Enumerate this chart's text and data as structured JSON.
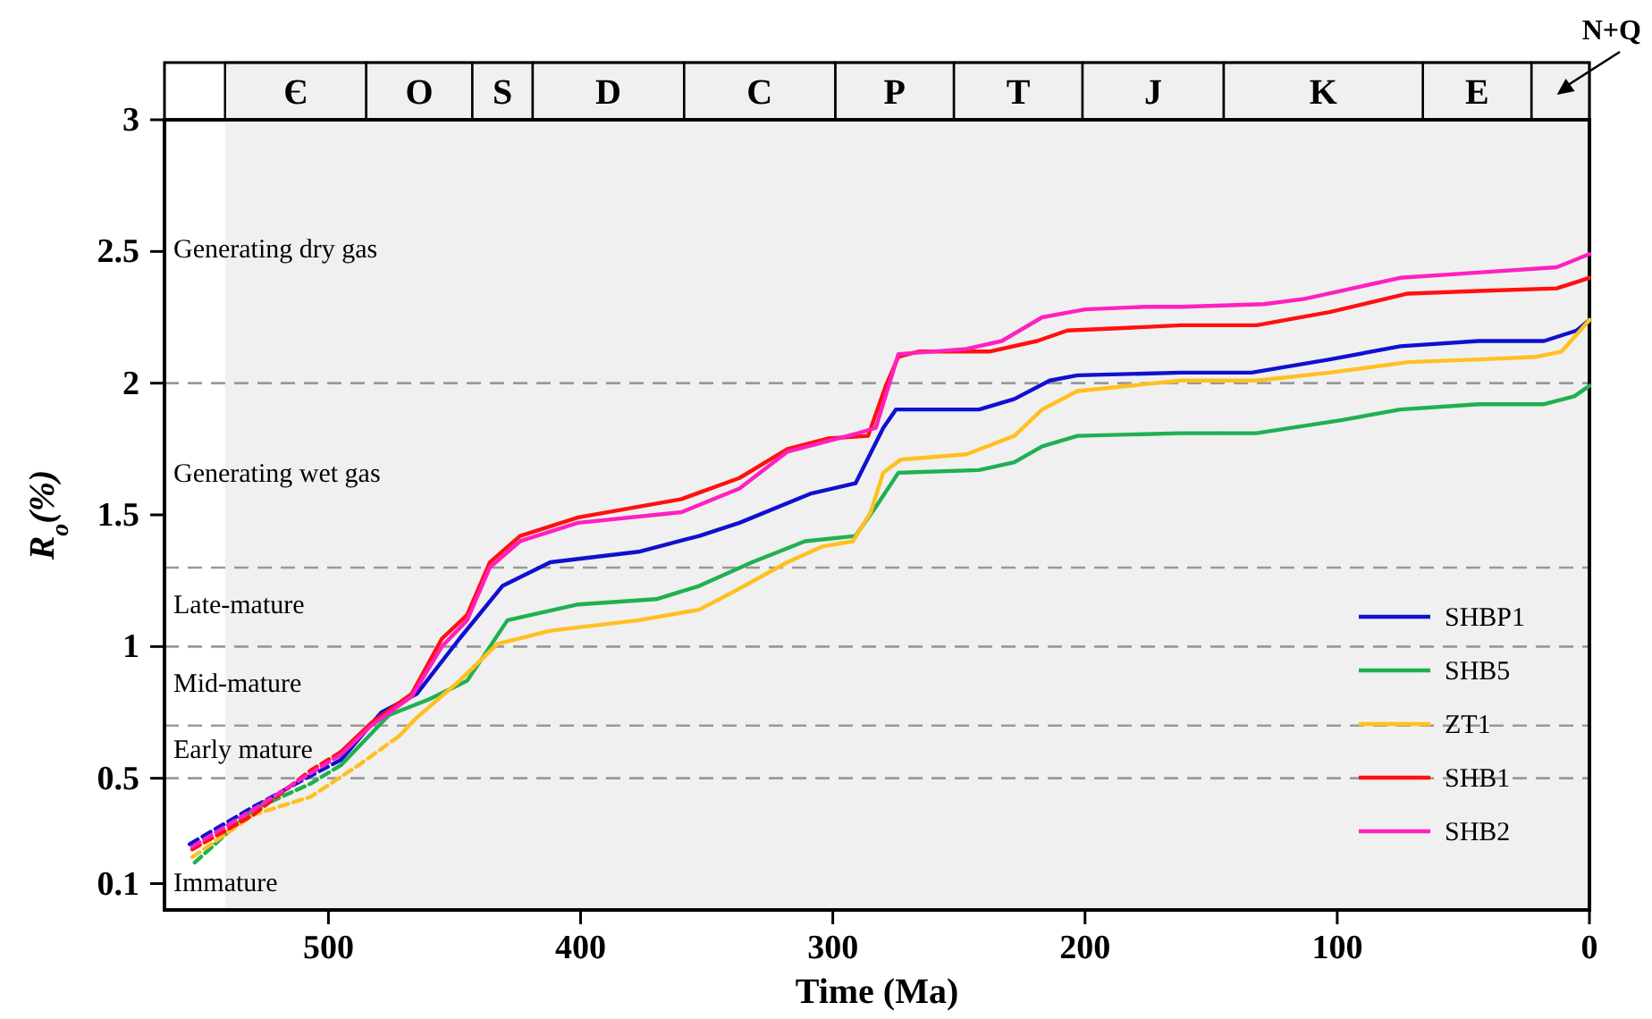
{
  "chart_data": {
    "type": "line",
    "xlabel": "Time (Ma)",
    "ylabel": "R$_{o}$(%)",
    "xlim": [
      565,
      0
    ],
    "xticks": [
      500,
      400,
      300,
      200,
      100,
      0
    ],
    "ylim": [
      0,
      3
    ],
    "yticks": [
      0.1,
      0.5,
      1,
      1.5,
      2,
      2.5,
      3
    ],
    "grid": false,
    "legend": "bottom right",
    "marker": "none",
    "series": [
      {
        "color": "#1010d0",
        "line_style": "dashed",
        "x": [
          555,
          530,
          507,
          495
        ],
        "values": [
          0.25,
          0.39,
          0.51,
          0.57
        ]
      },
      {
        "color": "#20b050",
        "line_style": "dashed",
        "x": [
          553,
          530,
          507,
          495
        ],
        "values": [
          0.18,
          0.38,
          0.48,
          0.55
        ]
      },
      {
        "color": "#ffc020",
        "line_style": "dashed",
        "x": [
          554,
          530,
          507,
          488,
          472
        ],
        "values": [
          0.2,
          0.36,
          0.43,
          0.55,
          0.66
        ]
      },
      {
        "color": "#ff1010",
        "line_style": "dashed",
        "x": [
          554,
          530,
          507,
          495
        ],
        "values": [
          0.23,
          0.36,
          0.53,
          0.6
        ]
      },
      {
        "color": "#ff20c0",
        "line_style": "dashed",
        "x": [
          554,
          530,
          507,
          495
        ],
        "values": [
          0.24,
          0.38,
          0.52,
          0.59
        ]
      },
      {
        "name": "SHBP1",
        "color": "#1010d0",
        "line_style": "solid",
        "x": [
          495,
          479,
          465,
          448,
          431,
          412,
          377,
          353,
          337,
          309,
          291,
          280,
          275,
          242,
          228,
          214,
          203,
          162,
          134,
          103,
          75,
          44,
          18,
          5,
          0
        ],
        "values": [
          0.57,
          0.75,
          0.82,
          1.03,
          1.23,
          1.32,
          1.36,
          1.42,
          1.47,
          1.58,
          1.62,
          1.83,
          1.9,
          1.9,
          1.94,
          2.01,
          2.03,
          2.04,
          2.04,
          2.09,
          2.14,
          2.16,
          2.16,
          2.2,
          2.24
        ]
      },
      {
        "name": "SHB5",
        "color": "#20b050",
        "line_style": "solid",
        "x": [
          495,
          486,
          476,
          460,
          445,
          429,
          401,
          370,
          353,
          332,
          311,
          291,
          283,
          274,
          242,
          228,
          217,
          203,
          162,
          132,
          98,
          75,
          44,
          18,
          6,
          0
        ],
        "values": [
          0.55,
          0.64,
          0.74,
          0.8,
          0.87,
          1.1,
          1.16,
          1.18,
          1.23,
          1.32,
          1.4,
          1.42,
          1.53,
          1.66,
          1.67,
          1.7,
          1.76,
          1.8,
          1.81,
          1.81,
          1.86,
          1.9,
          1.92,
          1.92,
          1.95,
          1.99
        ]
      },
      {
        "name": "ZT1",
        "color": "#ffc020",
        "line_style": "solid",
        "x": [
          472,
          465,
          448,
          433,
          412,
          377,
          353,
          339,
          318,
          304,
          292,
          285,
          280,
          273,
          247,
          228,
          217,
          203,
          162,
          132,
          103,
          72,
          44,
          21,
          11,
          0
        ],
        "values": [
          0.66,
          0.73,
          0.87,
          1.01,
          1.06,
          1.1,
          1.14,
          1.21,
          1.32,
          1.38,
          1.4,
          1.51,
          1.66,
          1.71,
          1.73,
          1.8,
          1.9,
          1.97,
          2.01,
          2.01,
          2.04,
          2.08,
          2.09,
          2.1,
          2.12,
          2.24
        ]
      },
      {
        "name": "SHB1",
        "color": "#ff1010",
        "line_style": "solid",
        "x": [
          495,
          483,
          467,
          455,
          445,
          436,
          424,
          401,
          360,
          337,
          318,
          302,
          286,
          279,
          274,
          266,
          238,
          219,
          207,
          183,
          162,
          132,
          103,
          72,
          44,
          13,
          0
        ],
        "values": [
          0.6,
          0.71,
          0.82,
          1.03,
          1.12,
          1.32,
          1.42,
          1.49,
          1.56,
          1.64,
          1.75,
          1.79,
          1.8,
          1.99,
          2.1,
          2.12,
          2.12,
          2.16,
          2.2,
          2.21,
          2.22,
          2.22,
          2.27,
          2.34,
          2.35,
          2.36,
          2.4
        ]
      },
      {
        "name": "SHB2",
        "color": "#ff20c0",
        "line_style": "solid",
        "x": [
          495,
          483,
          467,
          455,
          445,
          436,
          424,
          401,
          360,
          337,
          318,
          290,
          283,
          274,
          247,
          233,
          217,
          200,
          176,
          162,
          129,
          113,
          75,
          44,
          13,
          0
        ],
        "values": [
          0.59,
          0.7,
          0.81,
          1.0,
          1.1,
          1.3,
          1.4,
          1.47,
          1.51,
          1.6,
          1.74,
          1.81,
          1.83,
          2.11,
          2.13,
          2.16,
          2.25,
          2.28,
          2.29,
          2.29,
          2.3,
          2.32,
          2.4,
          2.42,
          2.44,
          2.49
        ]
      }
    ],
    "ref_lines": [
      {
        "axis": "y",
        "value": 0.5,
        "color": "#999999",
        "line_style": "dashed"
      },
      {
        "axis": "y",
        "value": 0.7,
        "color": "#999999",
        "line_style": "dashed"
      },
      {
        "axis": "y",
        "value": 1,
        "color": "#999999",
        "line_style": "dashed"
      },
      {
        "axis": "y",
        "value": 1.3,
        "color": "#999999",
        "line_style": "dashed"
      },
      {
        "axis": "y",
        "value": 2,
        "color": "#999999",
        "line_style": "dashed"
      }
    ],
    "bands": [
      {
        "axis": "x",
        "from": 541,
        "to": 485,
        "label": "Є",
        "color": "#f0f0f0"
      },
      {
        "axis": "x",
        "from": 485,
        "to": 443,
        "label": "O",
        "color": "#f0f0f0"
      },
      {
        "axis": "x",
        "from": 443,
        "to": 419,
        "label": "S",
        "color": "#f0f0f0"
      },
      {
        "axis": "x",
        "from": 419,
        "to": 359,
        "label": "D",
        "color": "#f0f0f0"
      },
      {
        "axis": "x",
        "from": 359,
        "to": 299,
        "label": "C",
        "color": "#f0f0f0"
      },
      {
        "axis": "x",
        "from": 299,
        "to": 252,
        "label": "P",
        "color": "#f0f0f0"
      },
      {
        "axis": "x",
        "from": 252,
        "to": 201,
        "label": "T",
        "color": "#f0f0f0"
      },
      {
        "axis": "x",
        "from": 201,
        "to": 145,
        "label": "J",
        "color": "#f0f0f0"
      },
      {
        "axis": "x",
        "from": 145,
        "to": 66,
        "label": "K",
        "color": "#f0f0f0"
      },
      {
        "axis": "x",
        "from": 66,
        "to": 23,
        "label": "E",
        "color": "#f0f0f0"
      },
      {
        "axis": "x",
        "from": 23,
        "to": 0,
        "label": "N+Q",
        "color": "#f0f0f0"
      }
    ],
    "annotations": [
      "Generating dry gas",
      "Generating wet gas",
      "Late-mature",
      "Mid-mature",
      "Early mature",
      "Immature"
    ]
  }
}
